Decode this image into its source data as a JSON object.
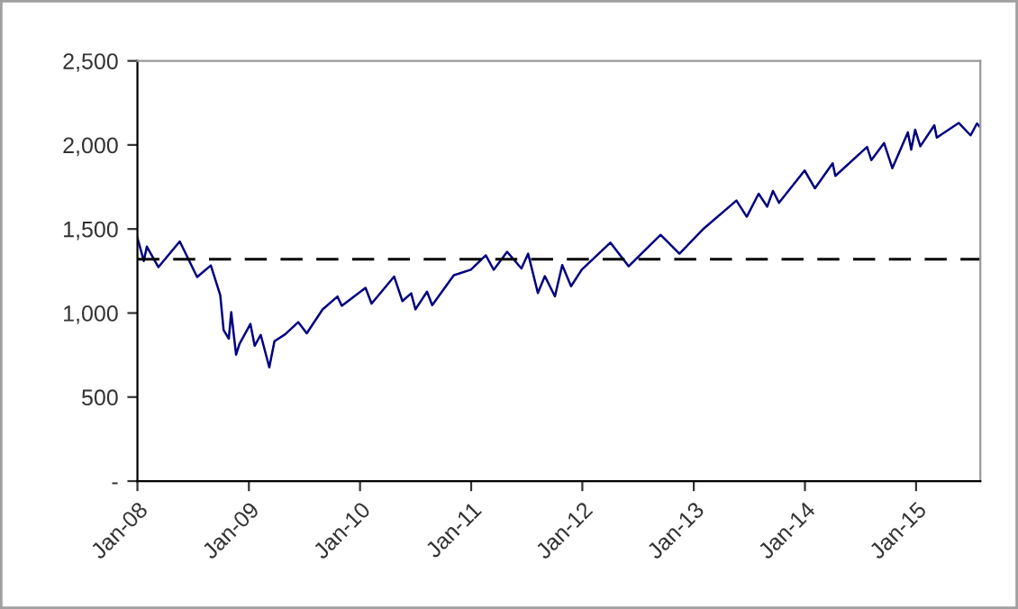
{
  "chart_data": {
    "type": "line",
    "x": [
      "2008-01-01",
      "2008-01-22",
      "2008-02-01",
      "2008-03-10",
      "2008-05-19",
      "2008-07-15",
      "2008-08-29",
      "2008-09-29",
      "2008-10-10",
      "2008-10-27",
      "2008-11-04",
      "2008-11-20",
      "2008-12-01",
      "2009-01-06",
      "2009-01-20",
      "2009-02-09",
      "2009-03-09",
      "2009-03-26",
      "2009-04-30",
      "2009-06-12",
      "2009-07-10",
      "2009-08-31",
      "2009-10-19",
      "2009-11-02",
      "2010-01-19",
      "2010-02-08",
      "2010-04-23",
      "2010-05-20",
      "2010-06-18",
      "2010-07-02",
      "2010-08-09",
      "2010-08-26",
      "2010-11-05",
      "2010-12-31",
      "2011-02-18",
      "2011-03-16",
      "2011-04-29",
      "2011-06-15",
      "2011-07-07",
      "2011-08-08",
      "2011-08-31",
      "2011-10-03",
      "2011-10-27",
      "2011-11-25",
      "2011-12-30",
      "2012-04-02",
      "2012-06-01",
      "2012-09-14",
      "2012-11-15",
      "2013-01-31",
      "2013-05-21",
      "2013-06-24",
      "2013-08-02",
      "2013-08-30",
      "2013-09-18",
      "2013-10-08",
      "2013-12-31",
      "2014-02-03",
      "2014-04-02",
      "2014-04-11",
      "2014-07-24",
      "2014-08-07",
      "2014-09-18",
      "2014-10-15",
      "2014-12-05",
      "2014-12-16",
      "2014-12-29",
      "2015-01-15",
      "2015-03-02",
      "2015-03-10",
      "2015-05-21",
      "2015-06-29",
      "2015-07-20",
      "2015-07-31"
    ],
    "series": [
      {
        "color": "#000080",
        "values": [
          1447,
          1310,
          1395,
          1273,
          1426,
          1214,
          1283,
          1106,
          899,
          848,
          1005,
          752,
          816,
          935,
          805,
          870,
          677,
          832,
          873,
          946,
          879,
          1021,
          1098,
          1043,
          1150,
          1056,
          1217,
          1071,
          1117,
          1022,
          1127,
          1047,
          1225,
          1258,
          1343,
          1257,
          1364,
          1265,
          1353,
          1119,
          1219,
          1099,
          1285,
          1159,
          1258,
          1419,
          1278,
          1465,
          1353,
          1498,
          1669,
          1573,
          1710,
          1633,
          1726,
          1656,
          1848,
          1742,
          1891,
          1816,
          1988,
          1910,
          2011,
          1862,
          2075,
          1972,
          2090,
          1992,
          2117,
          2044,
          2131,
          2057,
          2128,
          2104
        ]
      }
    ],
    "xlim": [
      "2008-01-01",
      "2015-07-31"
    ],
    "xticks": [
      {
        "value": "2008-01-01",
        "label": "Jan-08"
      },
      {
        "value": "2009-01-01",
        "label": "Jan-09"
      },
      {
        "value": "2010-01-01",
        "label": "Jan-10"
      },
      {
        "value": "2011-01-01",
        "label": "Jan-11"
      },
      {
        "value": "2012-01-01",
        "label": "Jan-12"
      },
      {
        "value": "2013-01-01",
        "label": "Jan-13"
      },
      {
        "value": "2014-01-01",
        "label": "Jan-14"
      },
      {
        "value": "2015-01-01",
        "label": "Jan-15"
      }
    ],
    "ylim": [
      0,
      2500
    ],
    "yticks": [
      {
        "value": 0,
        "label": "-"
      },
      {
        "value": 500,
        "label": "500"
      },
      {
        "value": 1000,
        "label": "1,000"
      },
      {
        "value": 1500,
        "label": "1,500"
      },
      {
        "value": 2000,
        "label": "2,000"
      },
      {
        "value": 2500,
        "label": "2,500"
      }
    ],
    "ref_lines": [
      {
        "axis": "y",
        "value": 1320,
        "color": "#000000",
        "line_style": "dashed"
      }
    ],
    "grid": false,
    "legend": false
  }
}
